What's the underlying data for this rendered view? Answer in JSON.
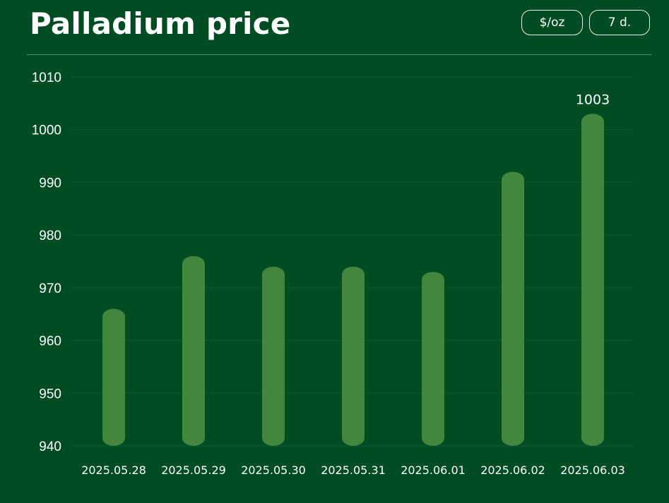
{
  "header": {
    "title": "Palladium price",
    "unit_label": "$/oz",
    "range_label": "7 d."
  },
  "colors": {
    "background": "#004d24",
    "bar": "#43873f",
    "gridline": "#0d5a2b"
  },
  "chart_data": {
    "type": "bar",
    "title": "Palladium price",
    "xlabel": "",
    "ylabel": "",
    "categories": [
      "2025.05.28",
      "2025.05.29",
      "2025.05.30",
      "2025.05.31",
      "2025.06.01",
      "2025.06.02",
      "2025.06.03"
    ],
    "values": [
      966,
      976,
      974,
      974,
      973,
      992,
      1003
    ],
    "ylim": [
      940,
      1010
    ],
    "yticks": [
      940,
      950,
      960,
      970,
      980,
      990,
      1000,
      1010
    ],
    "grid": true,
    "legend": "none",
    "data_labels": [
      {
        "category": "2025.06.03",
        "text": "1003"
      }
    ]
  }
}
